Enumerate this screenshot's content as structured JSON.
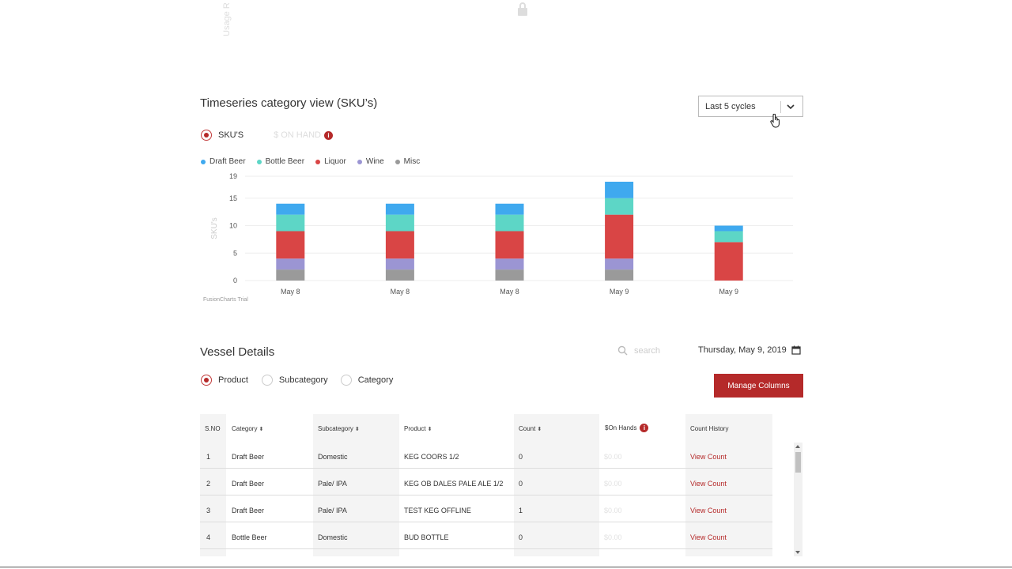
{
  "usage_label": "Usage R",
  "timeseries": {
    "title": "Timeseries category view (SKU’s)",
    "cycles_select": "Last 5 cycles",
    "toggle": {
      "option1": "SKU'S",
      "option2": "$ ON HAND"
    }
  },
  "chart_data": {
    "type": "bar",
    "stacked": true,
    "categories": [
      "May 8",
      "May 8",
      "May 8",
      "May 9",
      "May 9"
    ],
    "series": [
      {
        "name": "Misc",
        "color": "#9a9a9a",
        "values": [
          2,
          2,
          2,
          2,
          0
        ]
      },
      {
        "name": "Wine",
        "color": "#9b95d3",
        "values": [
          2,
          2,
          2,
          2,
          0
        ]
      },
      {
        "name": "Liquor",
        "color": "#d94545",
        "values": [
          5,
          5,
          5,
          8,
          7
        ]
      },
      {
        "name": "Bottle Beer",
        "color": "#5dd6c6",
        "values": [
          3,
          3,
          3,
          3,
          2
        ]
      },
      {
        "name": "Draft Beer",
        "color": "#3fa9ef",
        "values": [
          2,
          2,
          2,
          3,
          1
        ]
      }
    ],
    "legend_order": [
      "Draft Beer",
      "Bottle Beer",
      "Liquor",
      "Wine",
      "Misc"
    ],
    "y_ticks": [
      "0",
      "5",
      "10",
      "15",
      "19"
    ],
    "ylim": [
      0,
      19
    ],
    "ylabel": "SKU's",
    "xlabel": "",
    "watermark": "FusionCharts Trial",
    "legend_position": "top-left"
  },
  "vessel": {
    "title": "Vessel Details",
    "search_placeholder": "search",
    "date": "Thursday, May 9, 2019",
    "radio": {
      "product": "Product",
      "subcategory": "Subcategory",
      "category": "Category"
    },
    "manage_columns": "Manage Columns",
    "headers": {
      "sno": "S.NO",
      "category": "Category",
      "subcategory": "Subcategory",
      "product": "Product",
      "count": "Count",
      "on_hands": "$On Hands",
      "count_history": "Count History"
    },
    "rows": [
      {
        "sno": "1",
        "category": "Draft Beer",
        "subcategory": "Domestic",
        "product": "KEG COORS 1/2",
        "count": "0",
        "dollar": "$0.00",
        "history": "View Count"
      },
      {
        "sno": "2",
        "category": "Draft Beer",
        "subcategory": "Pale/ IPA",
        "product": "KEG OB DALES PALE ALE 1/2",
        "count": "0",
        "dollar": "$0.00",
        "history": "View Count"
      },
      {
        "sno": "3",
        "category": "Draft Beer",
        "subcategory": "Pale/ IPA",
        "product": "TEST KEG OFFLINE",
        "count": "1",
        "dollar": "$0.00",
        "history": "View Count"
      },
      {
        "sno": "4",
        "category": "Bottle Beer",
        "subcategory": "Domestic",
        "product": "BUD BOTTLE",
        "count": "0",
        "dollar": "$0.00",
        "history": "View Count"
      }
    ]
  }
}
